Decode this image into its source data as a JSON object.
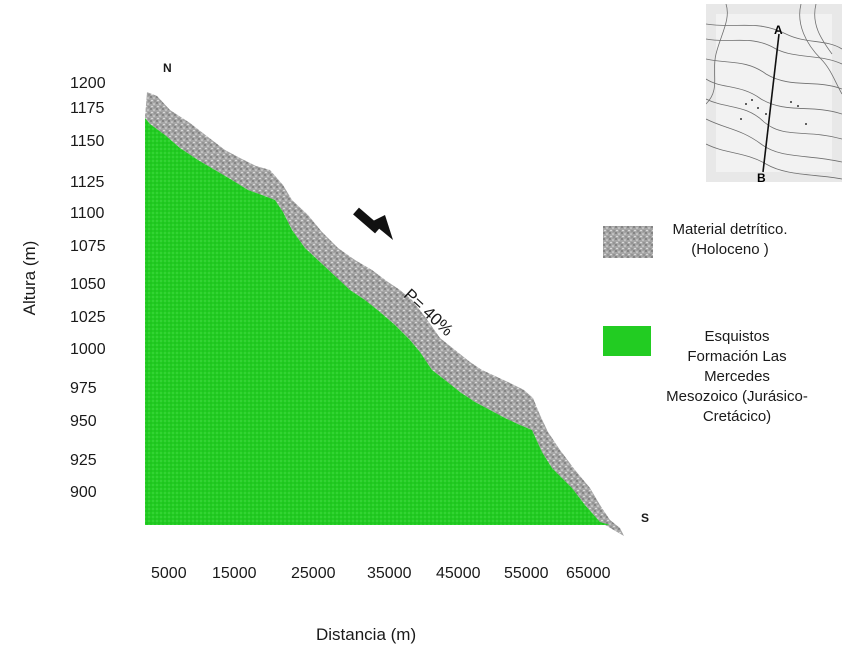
{
  "diagram": {
    "y_axis_label": "Altura (m)",
    "x_axis_label": "Distancia (m)",
    "y_ticks": [
      "1200",
      "1175",
      "1150",
      "1125",
      "1100",
      "1075",
      "1050",
      "1025",
      "1000",
      "975",
      "950",
      "925",
      "900"
    ],
    "x_ticks": [
      "5000",
      "15000",
      "25000",
      "35000",
      "45000",
      "55000",
      "65000"
    ],
    "north_label": "N",
    "south_label": "S",
    "slope_label": "P= 40%",
    "inset": {
      "point_a": "A",
      "point_b": "B"
    },
    "legend": [
      {
        "text": "Material detrítico.\n(Holoceno )",
        "color": "#a9a9a9"
      },
      {
        "text": "Esquistos\nFormación Las\nMercedes\nMesozoico (Jurásico-\nCretácico)",
        "color": "#22cc22"
      }
    ],
    "colors": {
      "schist": "#22cc22",
      "detritic": "#a9a9a9"
    }
  }
}
